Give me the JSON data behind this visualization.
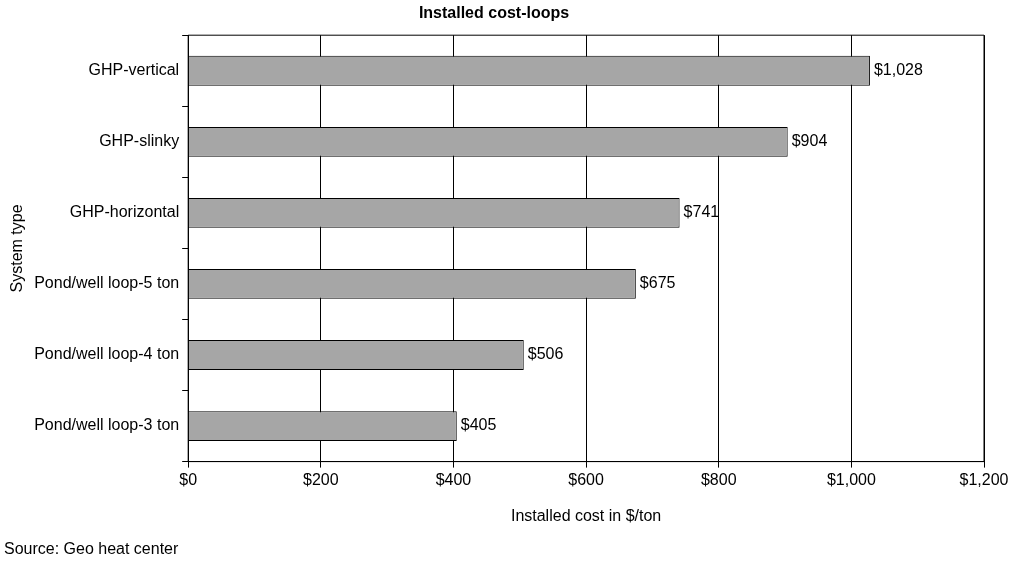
{
  "chart_data": {
    "type": "bar",
    "orientation": "horizontal",
    "title": "Installed cost-loops",
    "xlabel": "Installed cost in $/ton",
    "ylabel": "System type",
    "categories": [
      "GHP-vertical",
      "GHP-slinky",
      "GHP-horizontal",
      "Pond/well loop-5 ton",
      "Pond/well loop-4 ton",
      "Pond/well loop-3 ton"
    ],
    "values": [
      1028,
      904,
      741,
      675,
      506,
      405
    ],
    "value_labels": [
      "$1,028",
      "$904",
      "$741",
      "$675",
      "$506",
      "$405"
    ],
    "color": "#a6a6a6",
    "xlim": [
      0,
      1200
    ],
    "xticks": [
      {
        "value": 0,
        "label": "$0"
      },
      {
        "value": 200,
        "label": "$200"
      },
      {
        "value": 400,
        "label": "$400"
      },
      {
        "value": 600,
        "label": "$600"
      },
      {
        "value": 800,
        "label": "$800"
      },
      {
        "value": 1000,
        "label": "$1,000"
      },
      {
        "value": 1200,
        "label": "$1,200"
      }
    ],
    "grid": "x",
    "legend": false,
    "annotations": [
      "Source: Geo heat center"
    ]
  }
}
